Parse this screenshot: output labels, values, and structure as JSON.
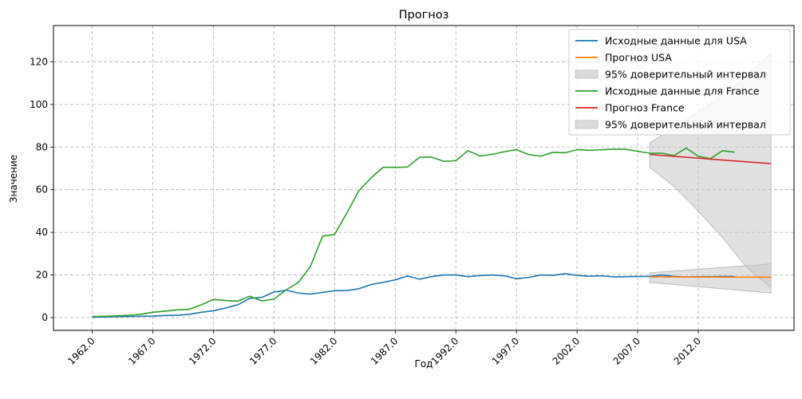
{
  "chart_data": {
    "type": "line",
    "title": "Прогноз",
    "xlabel": "Год",
    "ylabel": "Значение",
    "xlim": [
      1958.8,
      2019.9
    ],
    "ylim": [
      -6,
      137
    ],
    "x_ticks": [
      1962,
      1967,
      1972,
      1977,
      1982,
      1987,
      1992,
      1997,
      2002,
      2007,
      2012
    ],
    "x_tick_labels": [
      "1962.0",
      "1967.0",
      "1972.0",
      "1977.0",
      "1982.0",
      "1987.0",
      "1992.0",
      "1997.0",
      "2002.0",
      "2007.0",
      "2012.0"
    ],
    "y_ticks": [
      0,
      20,
      40,
      60,
      80,
      100,
      120
    ],
    "y_tick_labels": [
      "0",
      "20",
      "40",
      "60",
      "80",
      "100",
      "120"
    ],
    "grid": true,
    "legend_position": "top-right",
    "legend": [
      {
        "label": "Исходные данные для USA",
        "kind": "line",
        "color": "#1f77b4"
      },
      {
        "label": "Прогноз USA",
        "kind": "line",
        "color": "#ff7f0e"
      },
      {
        "label": "95% доверительный интервал",
        "kind": "patch",
        "color": "#cccccc"
      },
      {
        "label": "Исходные данные для France",
        "kind": "line",
        "color": "#2ca02c"
      },
      {
        "label": "Прогноз France",
        "kind": "line",
        "color": "#d62728"
      },
      {
        "label": "95% доверительный интервал",
        "kind": "patch",
        "color": "#cccccc"
      }
    ],
    "series": [
      {
        "name": "Исходные данные для USA",
        "color": "#1f77b4",
        "x": [
          1962,
          1963,
          1964,
          1965,
          1966,
          1967,
          1968,
          1969,
          1970,
          1971,
          1972,
          1973,
          1974,
          1975,
          1976,
          1977,
          1978,
          1979,
          1980,
          1981,
          1982,
          1983,
          1984,
          1985,
          1986,
          1987,
          1988,
          1989,
          1990,
          1991,
          1992,
          1993,
          1994,
          1995,
          1996,
          1997,
          1998,
          1999,
          2000,
          2001,
          2002,
          2003,
          2004,
          2005,
          2006,
          2007,
          2008,
          2009,
          2010,
          2011,
          2012,
          2013,
          2014,
          2015
        ],
        "y": [
          0.2,
          0.3,
          0.4,
          0.5,
          0.6,
          0.7,
          1.0,
          1.1,
          1.5,
          2.5,
          3.2,
          4.5,
          6.0,
          9.0,
          9.5,
          12.0,
          12.8,
          11.5,
          11.0,
          11.8,
          12.6,
          12.7,
          13.5,
          15.5,
          16.5,
          17.7,
          19.5,
          18.0,
          19.2,
          20.0,
          20.0,
          19.2,
          19.7,
          20.0,
          19.6,
          18.2,
          18.8,
          20.0,
          19.8,
          20.6,
          19.8,
          19.4,
          19.6,
          19.1,
          19.2,
          19.3,
          19.3,
          20.0,
          19.3,
          19.0,
          19.2,
          19.2,
          19.3,
          19.3
        ]
      },
      {
        "name": "Прогноз USA",
        "color": "#ff7f0e",
        "x": [
          2008,
          2018
        ],
        "y": [
          19.1,
          18.9
        ]
      },
      {
        "name": "Исходные данные для France",
        "color": "#2ca02c",
        "x": [
          1962,
          1963,
          1964,
          1965,
          1966,
          1967,
          1968,
          1969,
          1970,
          1971,
          1972,
          1973,
          1974,
          1975,
          1976,
          1977,
          1978,
          1979,
          1980,
          1981,
          1982,
          1983,
          1984,
          1985,
          1986,
          1987,
          1988,
          1989,
          1990,
          1991,
          1992,
          1993,
          1994,
          1995,
          1996,
          1997,
          1998,
          1999,
          2000,
          2001,
          2002,
          2003,
          2004,
          2005,
          2006,
          2007,
          2008,
          2009,
          2010,
          2011,
          2012,
          2013,
          2014,
          2015
        ],
        "y": [
          0.5,
          0.6,
          0.8,
          1.1,
          1.5,
          2.5,
          3.0,
          3.6,
          3.9,
          6.0,
          8.5,
          8.0,
          7.7,
          10.0,
          7.8,
          8.7,
          13.0,
          16.5,
          24.0,
          38.2,
          39.0,
          49.0,
          59.5,
          65.5,
          70.5,
          70.5,
          70.6,
          75.2,
          75.3,
          73.3,
          73.6,
          78.3,
          75.8,
          76.6,
          77.8,
          78.8,
          76.5,
          75.7,
          77.5,
          77.3,
          78.8,
          78.5,
          78.7,
          79.0,
          79.0,
          78.0,
          77.1,
          77.1,
          76.0,
          79.5,
          75.7,
          74.5,
          78.3,
          77.6
        ]
      },
      {
        "name": "Прогноз France",
        "color": "#d62728",
        "x": [
          2008,
          2018
        ],
        "y": [
          76.5,
          72.2
        ]
      }
    ],
    "confidence_intervals": [
      {
        "name": "95% доверительный интервал",
        "color": "#c8c8c8",
        "x": [
          2008,
          2018
        ],
        "upper": [
          21.0,
          25.2
        ],
        "lower": [
          16.5,
          11.5
        ]
      },
      {
        "name": "95% доверительный интервал",
        "color": "#c8c8c8",
        "x": [
          2008,
          2010,
          2012,
          2014,
          2016,
          2018
        ],
        "upper": [
          82.0,
          89.0,
          96.5,
          104.0,
          113.5,
          124.0
        ],
        "lower": [
          70.5,
          61.5,
          50.0,
          37.5,
          23.5,
          14.0
        ]
      }
    ]
  }
}
